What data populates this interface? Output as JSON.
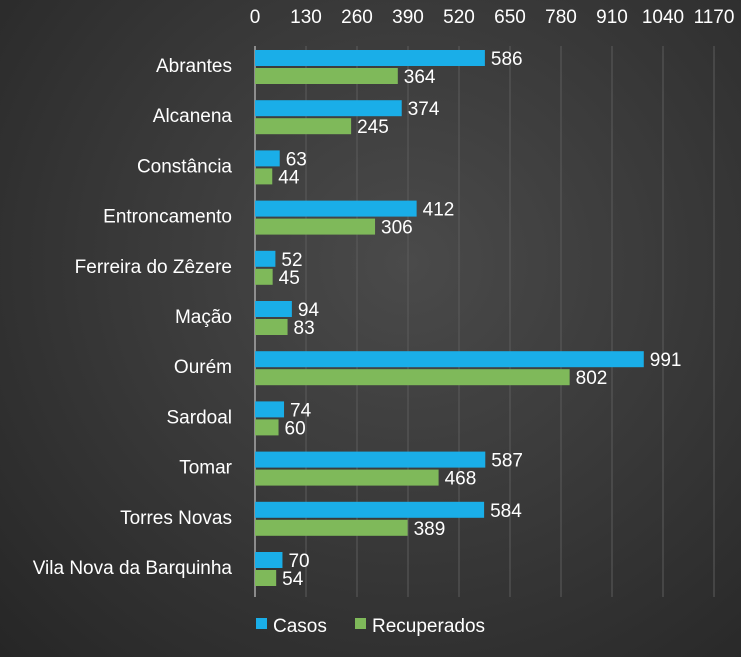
{
  "chart_data": {
    "type": "bar",
    "orientation": "horizontal",
    "title": "",
    "xlabel": "",
    "ylabel": "",
    "xlim": [
      0,
      1170
    ],
    "x_ticks": [
      0,
      130,
      260,
      390,
      520,
      650,
      780,
      910,
      1040,
      1170
    ],
    "x_tick_labels": [
      "0",
      "130",
      "260",
      "390",
      "520",
      "650",
      "780",
      "910",
      "1040",
      "1170"
    ],
    "x_axis_position": "top",
    "grid": true,
    "legend_position": "bottom-left",
    "categories": [
      "Abrantes",
      "Alcanena",
      "Constância",
      "Entroncamento",
      "Ferreira do Zêzere",
      "Mação",
      "Ourém",
      "Sardoal",
      "Tomar",
      "Torres Novas",
      "Vila Nova da Barquinha"
    ],
    "series": [
      {
        "name": "Casos",
        "color": "#1aaee8",
        "values": [
          586,
          374,
          63,
          412,
          52,
          94,
          991,
          74,
          587,
          584,
          70
        ]
      },
      {
        "name": "Recuperados",
        "color": "#7fb95a",
        "values": [
          364,
          245,
          44,
          306,
          45,
          83,
          802,
          60,
          468,
          389,
          54
        ]
      }
    ]
  }
}
